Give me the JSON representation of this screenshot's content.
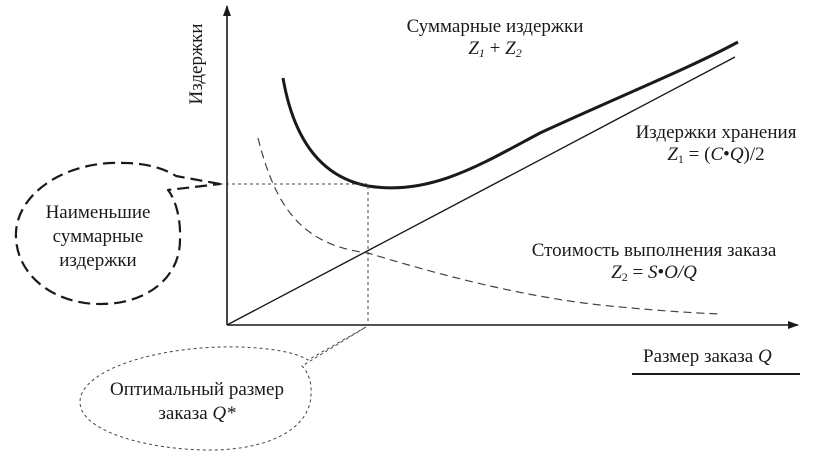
{
  "y_axis_label": "Издержки",
  "x_axis_label": "Размер заказа",
  "x_axis_var": "Q",
  "total_cost": {
    "title": "Суммарные издержки",
    "formula_a": "Z",
    "formula_a_sub": "1",
    "formula_plus": " + ",
    "formula_b": "Z",
    "formula_b_sub": "2"
  },
  "holding_cost": {
    "title": "Издержки хранения",
    "z": "Z",
    "z_sub": "1",
    "eq_open": " = (",
    "c": "C",
    "dot": "•",
    "q": "Q",
    "tail": ")/2"
  },
  "order_cost": {
    "title": "Стоимость выполнения заказа",
    "z": "Z",
    "z_sub": "2",
    "eq": " = ",
    "s": "S",
    "dot": "•",
    "expr": "O/Q"
  },
  "min_cost_callout": [
    "Наименьшие",
    "суммарные",
    "издержки"
  ],
  "optimal_callout": {
    "line1": "Оптимальный размер",
    "line2": "заказа ",
    "qstar": "Q*"
  },
  "colors": {
    "ink": "#1a1a1a",
    "dashed": "#444444"
  }
}
